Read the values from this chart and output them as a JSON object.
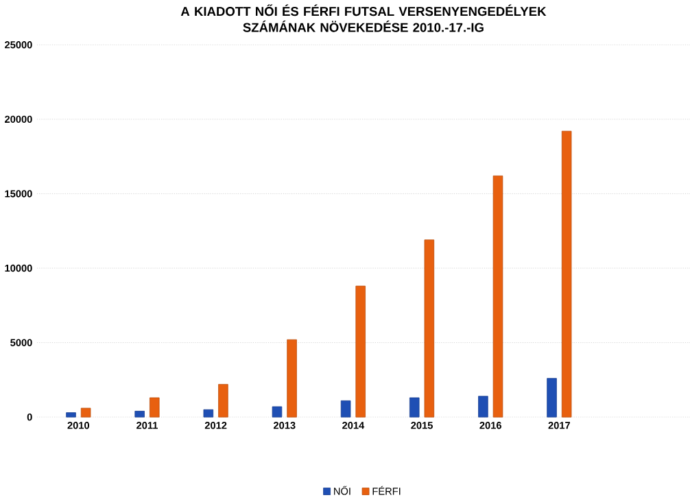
{
  "chart_data": {
    "type": "bar",
    "title": "A KIADOTT NŐI ÉS FÉRFI FUTSAL VERSENYENGEDÉLYEK SZÁMÁNAK NÖVEKEDÉSE 2010.-17.-IG",
    "categories": [
      "2010",
      "2011",
      "2012",
      "2013",
      "2014",
      "2015",
      "2016",
      "2017"
    ],
    "series": [
      {
        "name": "NŐI",
        "color": "#1f4fb4",
        "values": [
          300,
          400,
          500,
          700,
          1100,
          1300,
          1400,
          2600
        ]
      },
      {
        "name": "FÉRFI",
        "color": "#e8600f",
        "values": [
          600,
          1300,
          2200,
          5200,
          8800,
          11900,
          16200,
          19200
        ]
      }
    ],
    "ylim": [
      0,
      25000
    ],
    "yticks": [
      0,
      5000,
      10000,
      15000,
      20000,
      25000
    ],
    "grid": "y",
    "legend": "bottom"
  }
}
